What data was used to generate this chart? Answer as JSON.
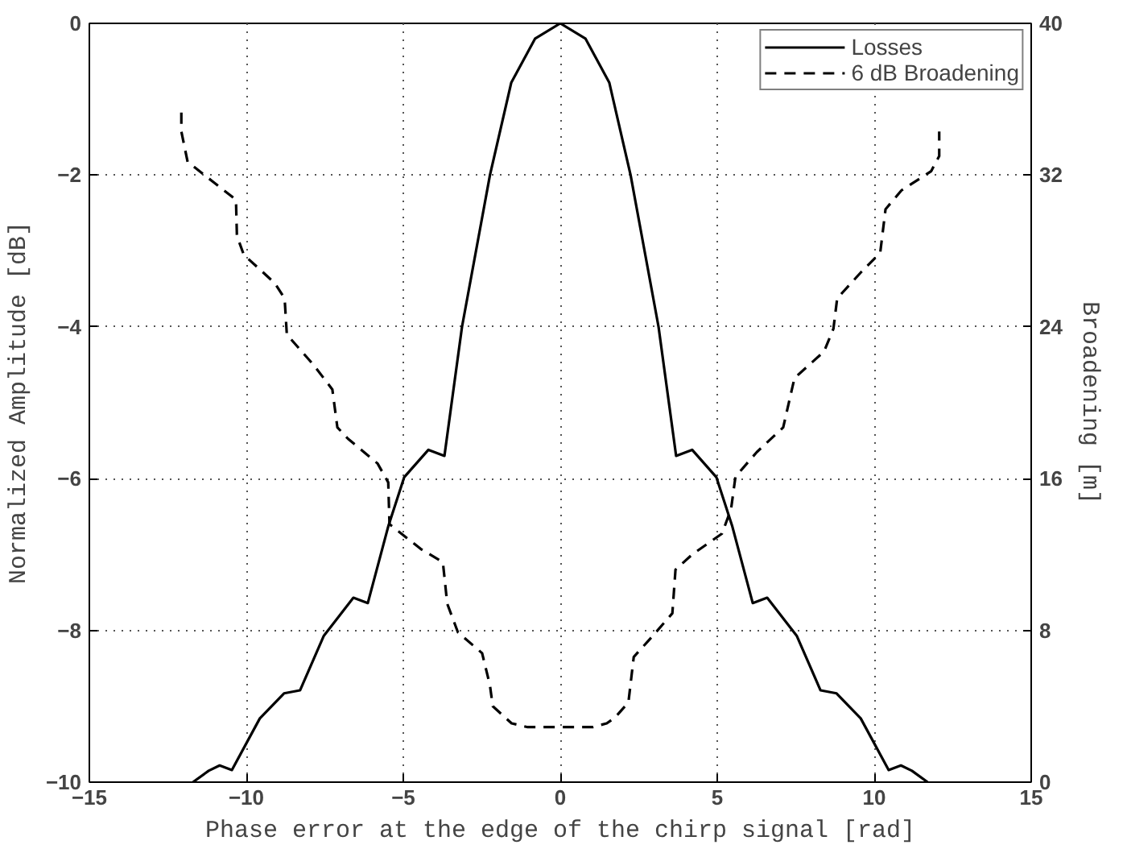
{
  "chart_data": {
    "type": "line",
    "xlabel": "Phase error at the edge of the chirp signal [rad]",
    "ylabel": "Normalized Amplitude [dB]",
    "y2label": "Broadening [m]",
    "xlim": [
      -15,
      15
    ],
    "xticks": [
      -15,
      -10,
      -5,
      0,
      5,
      10,
      15
    ],
    "ylim": [
      -10,
      0
    ],
    "yticks": [
      -10,
      -8,
      -6,
      -4,
      -2,
      0
    ],
    "y2lim": [
      0,
      40
    ],
    "y2ticks": [
      0,
      8,
      16,
      24,
      32,
      40
    ],
    "grid": true,
    "legend": "top right",
    "series": [
      {
        "name": "Losses",
        "color": "#000000",
        "line_style": "solid",
        "x": [
          -11.7,
          -11.2,
          -10.85,
          -10.46,
          -9.57,
          -8.8,
          -8.29,
          -7.53,
          -6.59,
          -6.13,
          -5.48,
          -4.97,
          -4.2,
          -3.69,
          -3.13,
          -2.24,
          -1.56,
          -0.8,
          0,
          0.8,
          1.56,
          2.24,
          3.13,
          3.69,
          4.2,
          4.97,
          5.48,
          6.13,
          6.59,
          7.53,
          8.29,
          8.8,
          9.57,
          10.46,
          10.85,
          11.2,
          11.7
        ],
        "values": [
          -10,
          -9.85,
          -9.78,
          -9.84,
          -9.16,
          -8.83,
          -8.79,
          -8.07,
          -7.57,
          -7.64,
          -6.63,
          -5.98,
          -5.62,
          -5.7,
          -4,
          -2,
          -0.78,
          -0.2,
          0,
          -0.2,
          -0.78,
          -2,
          -4,
          -5.7,
          -5.62,
          -5.98,
          -6.63,
          -7.64,
          -7.57,
          -8.07,
          -8.79,
          -8.83,
          -9.16,
          -9.84,
          -9.78,
          -9.85,
          -10
        ]
      },
      {
        "name": "6 dB Broadening",
        "color": "#000000",
        "line_style": "dashed",
        "axis": "y2",
        "x": [
          -12.07,
          -12.07,
          -11.87,
          -11.1,
          -10.33,
          -10.3,
          -10.08,
          -9.09,
          -8.78,
          -8.71,
          -7.86,
          -7.26,
          -7.1,
          -6.76,
          -5.82,
          -5.48,
          -5.44,
          -4.45,
          -3.74,
          -3.6,
          -3.26,
          -2.49,
          -2.24,
          -2.15,
          -1.55,
          -1.04,
          0,
          1.04,
          1.48,
          1.74,
          2.17,
          2.34,
          2.94,
          3.57,
          3.67,
          4.2,
          5.15,
          5.44,
          5.58,
          6.26,
          7.1,
          7.46,
          8.4,
          8.7,
          8.82,
          9.59,
          10.19,
          10.36,
          10.87,
          11.81,
          12.07,
          12.07
        ],
        "values": [
          35.3,
          34.3,
          32.7,
          31.7,
          30.7,
          28.8,
          27.8,
          26.3,
          25.5,
          23.6,
          22.0,
          20.7,
          18.7,
          18.1,
          16.8,
          15.8,
          13.6,
          12.3,
          11.6,
          9.4,
          7.9,
          6.8,
          5.1,
          4.0,
          3.1,
          2.9,
          2.9,
          2.9,
          3.1,
          3.4,
          4.2,
          6.6,
          7.7,
          8.9,
          11.2,
          12.0,
          13.1,
          14.4,
          16.1,
          17.4,
          18.7,
          21.3,
          22.7,
          23.9,
          25.5,
          26.9,
          27.9,
          30.2,
          31.2,
          32.2,
          33.0,
          34.3
        ]
      }
    ]
  }
}
